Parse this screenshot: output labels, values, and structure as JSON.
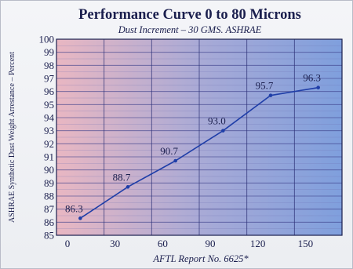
{
  "chart_data": {
    "type": "line",
    "title": "Performance Curve 0 to 80 Microns",
    "subtitle": "Dust Increment – 30 GMS. ASHRAE",
    "xlabel": "AFTL Report No. 6625*",
    "ylabel": "ASHRAE Synthetic Dust Weight Arrestance – Percent",
    "xlim": [
      0,
      180
    ],
    "ylim": [
      85,
      100
    ],
    "x_ticks": [
      0,
      30,
      60,
      90,
      120,
      150
    ],
    "y_ticks": [
      85,
      86,
      87,
      88,
      89,
      90,
      91,
      92,
      93,
      94,
      95,
      96,
      97,
      98,
      99,
      100
    ],
    "grid": true,
    "series": [
      {
        "x": [
          15,
          45,
          75,
          105,
          135,
          165
        ],
        "values": [
          86.3,
          88.7,
          90.7,
          93.0,
          95.7,
          96.3
        ],
        "labels": [
          "86.3",
          "88.7",
          "90.7",
          "93.0",
          "95.7",
          "96.3"
        ],
        "color": "#1f3ea8"
      }
    ],
    "background_gradient": [
      "#e9b7c2",
      "#a9aad6",
      "#7f9fdd"
    ]
  }
}
